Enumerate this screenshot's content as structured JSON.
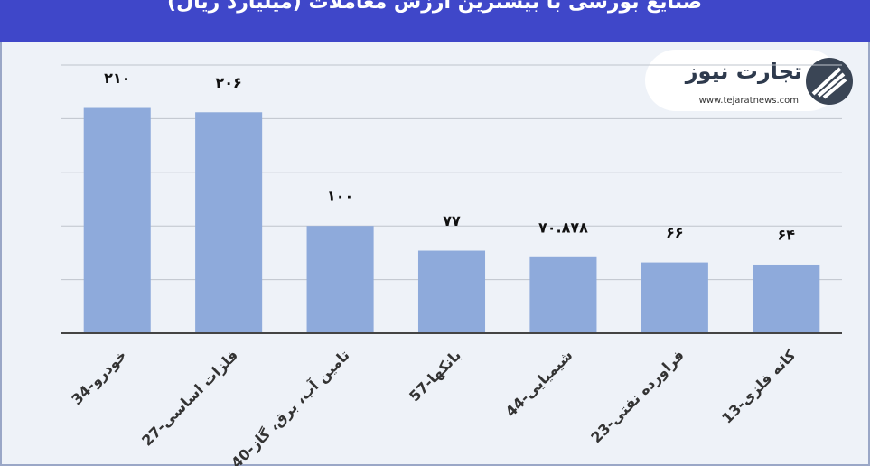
{
  "chart_data": {
    "type": "bar",
    "title": "صنایع بورسی با بیشترین ارزش معاملات (میلیارد ریال)",
    "categories": [
      "34-خودرو",
      "27-فلزات اساسی",
      "40-تامین آب، برق، گاز",
      "57-بانکها",
      "44-شیمیایی",
      "23-فراورده نفتی",
      "13-کانه فلزی"
    ],
    "values": [
      210,
      206,
      100,
      77,
      70.878,
      66,
      64
    ],
    "value_labels": [
      "۲۱۰",
      "۲۰۶",
      "۱۰۰",
      "۷۷",
      "۷۰.۸۷۸",
      "۶۶",
      "۶۴"
    ],
    "color": "#8eaadb",
    "ylim": [
      0,
      250
    ],
    "yticks": [
      0,
      50,
      100,
      150,
      200,
      250
    ],
    "grid": true
  },
  "logo": {
    "name": "تجارت نیوز",
    "url": "www.tejaratnews.com"
  }
}
